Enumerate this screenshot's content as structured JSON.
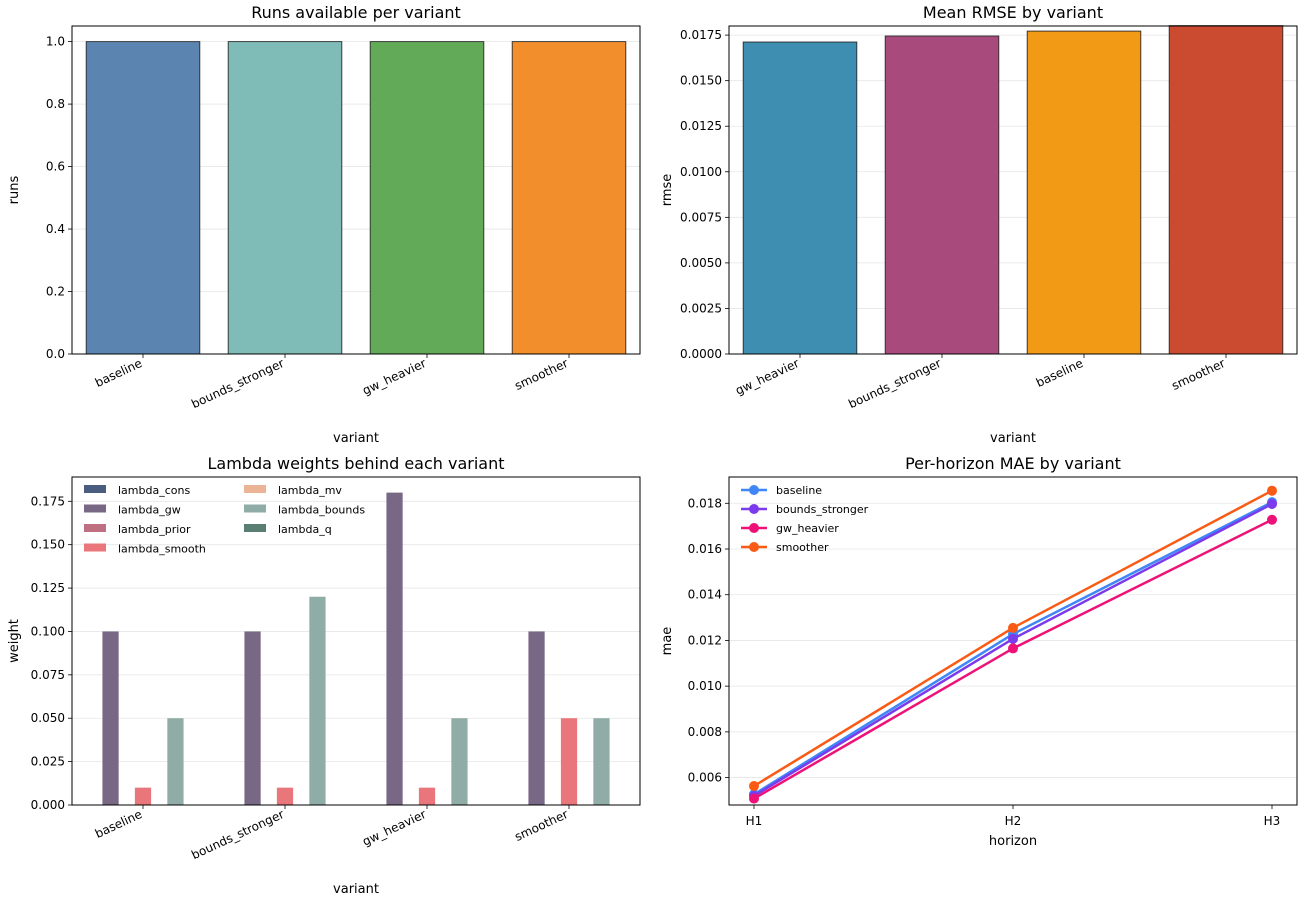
{
  "chart_data": [
    {
      "type": "bar",
      "title": "Runs available per variant",
      "xlabel": "variant",
      "ylabel": "runs",
      "categories": [
        "baseline",
        "bounds_stronger",
        "gw_heavier",
        "smoother"
      ],
      "values": [
        1,
        1,
        1,
        1
      ],
      "colors": [
        "#5b84b1",
        "#7fbcb8",
        "#62aa58",
        "#f28e2b"
      ],
      "ylim": [
        0,
        1.05
      ],
      "yticks": [
        0.0,
        0.2,
        0.4,
        0.6,
        0.8,
        1.0
      ],
      "ytick_labels": [
        "0.0",
        "0.2",
        "0.4",
        "0.6",
        "0.8",
        "1.0"
      ],
      "grid": "y"
    },
    {
      "type": "bar",
      "title": "Mean RMSE by variant",
      "xlabel": "variant",
      "ylabel": "rmse",
      "categories": [
        "gw_heavier",
        "bounds_stronger",
        "baseline",
        "smoother"
      ],
      "values": [
        0.01712,
        0.01745,
        0.01772,
        0.01802
      ],
      "colors": [
        "#3d8eb1",
        "#a94a7d",
        "#f29a15",
        "#cb4b30"
      ],
      "ylim": [
        0,
        0.018
      ],
      "yticks": [
        0,
        0.0025,
        0.005,
        0.0075,
        0.01,
        0.0125,
        0.015,
        0.0175
      ],
      "ytick_labels": [
        "0.0000",
        "0.0025",
        "0.0050",
        "0.0075",
        "0.0100",
        "0.0125",
        "0.0150",
        "0.0175"
      ],
      "grid": "y"
    },
    {
      "type": "bar",
      "title": "Lambda weights behind each variant",
      "xlabel": "variant",
      "ylabel": "weight",
      "categories": [
        "baseline",
        "bounds_stronger",
        "gw_heavier",
        "smoother"
      ],
      "series": [
        {
          "name": "lambda_cons",
          "color": "#4a5d7e",
          "values": [
            0,
            0,
            0,
            0
          ]
        },
        {
          "name": "lambda_gw",
          "color": "#786886",
          "values": [
            0.1,
            0.1,
            0.18,
            0.1
          ]
        },
        {
          "name": "lambda_prior",
          "color": "#bf6f82",
          "values": [
            0,
            0,
            0,
            0
          ]
        },
        {
          "name": "lambda_smooth",
          "color": "#e8767a",
          "values": [
            0.01,
            0.01,
            0.01,
            0.05
          ]
        },
        {
          "name": "lambda_mv",
          "color": "#ecb496",
          "values": [
            0,
            0,
            0,
            0
          ]
        },
        {
          "name": "lambda_bounds",
          "color": "#8fada6",
          "values": [
            0.05,
            0.12,
            0.05,
            0.05
          ]
        },
        {
          "name": "lambda_q",
          "color": "#5a7e74",
          "values": [
            0,
            0,
            0,
            0
          ]
        }
      ],
      "ylim": [
        0,
        0.189
      ],
      "yticks": [
        0,
        0.025,
        0.05,
        0.075,
        0.1,
        0.125,
        0.15,
        0.175
      ],
      "ytick_labels": [
        "0.000",
        "0.025",
        "0.050",
        "0.075",
        "0.100",
        "0.125",
        "0.150",
        "0.175"
      ],
      "legend": "top-left",
      "grid": "y"
    },
    {
      "type": "line",
      "title": "Per-horizon MAE by variant",
      "xlabel": "horizon",
      "ylabel": "mae",
      "x": [
        "H1",
        "H2",
        "H3"
      ],
      "series": [
        {
          "name": "baseline",
          "color": "#3f86f6",
          "values": [
            0.00527,
            0.01228,
            0.01805
          ]
        },
        {
          "name": "bounds_stronger",
          "color": "#7c3aed",
          "values": [
            0.0052,
            0.01207,
            0.01797
          ]
        },
        {
          "name": "gw_heavier",
          "color": "#ee1278",
          "values": [
            0.00508,
            0.01165,
            0.01728
          ]
        },
        {
          "name": "smoother",
          "color": "#f95a14",
          "values": [
            0.00563,
            0.01255,
            0.01855
          ]
        }
      ],
      "ylim": [
        0.0048,
        0.01915
      ],
      "yticks": [
        0.006,
        0.008,
        0.01,
        0.012,
        0.014,
        0.016,
        0.018
      ],
      "ytick_labels": [
        "0.006",
        "0.008",
        "0.010",
        "0.012",
        "0.014",
        "0.016",
        "0.018"
      ],
      "legend": "top-left",
      "grid": "y"
    }
  ]
}
